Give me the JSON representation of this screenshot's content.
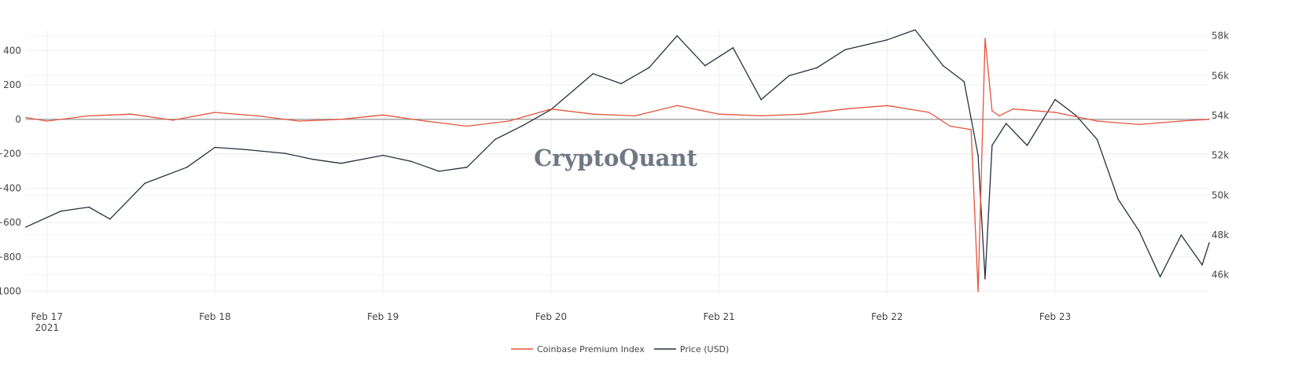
{
  "watermark": "CryptoQuant",
  "chart_data": {
    "type": "line",
    "title": "",
    "xlabel": "",
    "ylabel": "",
    "x_ticks": [
      {
        "date": "2021-02-17",
        "label": "Feb 17",
        "sublabel": "2021"
      },
      {
        "date": "2021-02-18",
        "label": "Feb 18",
        "sublabel": ""
      },
      {
        "date": "2021-02-19",
        "label": "Feb 19",
        "sublabel": ""
      },
      {
        "date": "2021-02-20",
        "label": "Feb 20",
        "sublabel": ""
      },
      {
        "date": "2021-02-21",
        "label": "Feb 21",
        "sublabel": ""
      },
      {
        "date": "2021-02-22",
        "label": "Feb 22",
        "sublabel": ""
      },
      {
        "date": "2021-02-23",
        "label": "Feb 23",
        "sublabel": ""
      }
    ],
    "xlim": [
      "2021-02-16 21:00",
      "2021-02-23 22:00"
    ],
    "y_left": {
      "range": [
        -1020,
        520
      ],
      "ticks": [
        400,
        200,
        0,
        -200,
        -400,
        -600,
        -800,
        -1000
      ],
      "tick_labels": [
        "400",
        "200",
        "0",
        "−200",
        "−400",
        "−600",
        "−800",
        "−1000"
      ]
    },
    "y_right": {
      "range": [
        45000,
        58300
      ],
      "ticks": [
        58000,
        56000,
        54000,
        52000,
        50000,
        48000,
        46000
      ],
      "tick_labels": [
        "58k",
        "56k",
        "54k",
        "52k",
        "50k",
        "48k",
        "46k"
      ]
    },
    "grid": true,
    "zero_line": true,
    "legend_position": "bottom-center",
    "series": [
      {
        "name": "Coinbase Premium Index",
        "axis": "left",
        "color": "#e5533c",
        "x": [
          "2021-02-16 21:00",
          "2021-02-17 00:00",
          "2021-02-17 06:00",
          "2021-02-17 12:00",
          "2021-02-17 18:00",
          "2021-02-18 00:00",
          "2021-02-18 06:00",
          "2021-02-18 12:00",
          "2021-02-18 18:00",
          "2021-02-19 00:00",
          "2021-02-19 06:00",
          "2021-02-19 12:00",
          "2021-02-19 18:00",
          "2021-02-20 00:00",
          "2021-02-20 06:00",
          "2021-02-20 12:00",
          "2021-02-20 18:00",
          "2021-02-21 00:00",
          "2021-02-21 06:00",
          "2021-02-21 12:00",
          "2021-02-21 18:00",
          "2021-02-22 00:00",
          "2021-02-22 06:00",
          "2021-02-22 09:00",
          "2021-02-22 12:00",
          "2021-02-22 13:00",
          "2021-02-22 14:00",
          "2021-02-22 15:00",
          "2021-02-22 16:00",
          "2021-02-22 18:00",
          "2021-02-23 00:00",
          "2021-02-23 06:00",
          "2021-02-23 12:00",
          "2021-02-23 18:00",
          "2021-02-23 22:00"
        ],
        "y": [
          10,
          -10,
          20,
          30,
          -5,
          40,
          20,
          -10,
          0,
          25,
          -10,
          -40,
          -10,
          60,
          30,
          20,
          80,
          30,
          20,
          30,
          60,
          80,
          40,
          -40,
          -60,
          -1000,
          470,
          50,
          20,
          60,
          40,
          -10,
          -30,
          -10,
          0
        ]
      },
      {
        "name": "Price (USD)",
        "axis": "right",
        "color": "#27303d",
        "x": [
          "2021-02-16 21:00",
          "2021-02-17 02:00",
          "2021-02-17 06:00",
          "2021-02-17 09:00",
          "2021-02-17 14:00",
          "2021-02-17 20:00",
          "2021-02-18 00:00",
          "2021-02-18 04:00",
          "2021-02-18 10:00",
          "2021-02-18 14:00",
          "2021-02-18 18:00",
          "2021-02-19 00:00",
          "2021-02-19 04:00",
          "2021-02-19 08:00",
          "2021-02-19 12:00",
          "2021-02-19 16:00",
          "2021-02-19 20:00",
          "2021-02-20 00:00",
          "2021-02-20 06:00",
          "2021-02-20 10:00",
          "2021-02-20 14:00",
          "2021-02-20 18:00",
          "2021-02-20 22:00",
          "2021-02-21 02:00",
          "2021-02-21 06:00",
          "2021-02-21 10:00",
          "2021-02-21 14:00",
          "2021-02-21 18:00",
          "2021-02-22 00:00",
          "2021-02-22 04:00",
          "2021-02-22 08:00",
          "2021-02-22 11:00",
          "2021-02-22 13:00",
          "2021-02-22 14:00",
          "2021-02-22 15:00",
          "2021-02-22 17:00",
          "2021-02-22 20:00",
          "2021-02-23 00:00",
          "2021-02-23 03:00",
          "2021-02-23 06:00",
          "2021-02-23 09:00",
          "2021-02-23 12:00",
          "2021-02-23 15:00",
          "2021-02-23 18:00",
          "2021-02-23 21:00",
          "2021-02-23 22:00"
        ],
        "y": [
          48400,
          49200,
          49400,
          48800,
          50600,
          51400,
          52400,
          52300,
          52100,
          51800,
          51600,
          52000,
          51700,
          51200,
          51400,
          52800,
          53500,
          54300,
          56100,
          55600,
          56400,
          58000,
          56500,
          57400,
          54800,
          56000,
          56400,
          57300,
          57800,
          58300,
          56500,
          55700,
          52000,
          45800,
          52500,
          53600,
          52500,
          54800,
          54000,
          52800,
          49800,
          48200,
          45900,
          48000,
          46500,
          47600
        ]
      }
    ]
  },
  "legend": [
    {
      "label": "Coinbase Premium Index",
      "color": "#e5533c"
    },
    {
      "label": "Price (USD)",
      "color": "#27303d"
    }
  ]
}
